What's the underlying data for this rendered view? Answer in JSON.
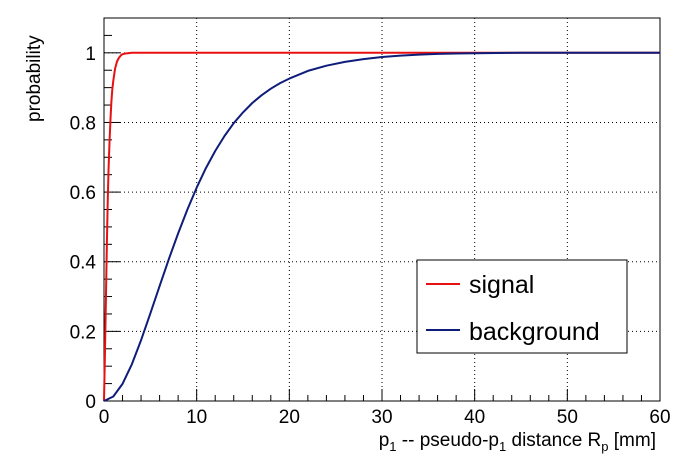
{
  "chart_data": {
    "type": "line",
    "xlabel": {
      "pre": "p",
      "sub1": "1",
      "mid": " -- pseudo-p",
      "sub2": "1",
      "post": " distance R",
      "sub3": "p",
      "unit": " [mm]"
    },
    "ylabel": "probability",
    "xlim": [
      0,
      60
    ],
    "ylim": [
      0,
      1.1
    ],
    "xticks": [
      0,
      10,
      20,
      30,
      40,
      50,
      60
    ],
    "yticks": [
      0,
      0.2,
      0.4,
      0.6,
      0.8,
      1
    ],
    "ytick_labels": [
      "0",
      "0.2",
      "0.4",
      "0.6",
      "0.8",
      "1"
    ],
    "grid": true,
    "legend_position": "bottom-right",
    "series": [
      {
        "name": "signal",
        "color": "#e81010",
        "x": [
          0,
          0.1,
          0.2,
          0.3,
          0.4,
          0.5,
          0.6,
          0.7,
          0.8,
          0.9,
          1.0,
          1.2,
          1.4,
          1.6,
          1.8,
          2.0,
          2.3,
          2.6,
          3.0,
          4,
          60
        ],
        "y": [
          0,
          0.13,
          0.29,
          0.44,
          0.57,
          0.67,
          0.75,
          0.81,
          0.86,
          0.895,
          0.92,
          0.955,
          0.975,
          0.985,
          0.992,
          0.996,
          0.998,
          0.999,
          1.0,
          1.0,
          1.0
        ]
      },
      {
        "name": "background",
        "color": "#0f1d7a",
        "x": [
          0,
          1,
          2,
          3,
          4,
          5,
          6,
          7,
          8,
          9,
          10,
          11,
          12,
          13,
          14,
          15,
          16,
          17,
          18,
          19,
          20,
          22,
          24,
          26,
          28,
          30,
          32,
          34,
          36,
          38,
          40,
          45,
          50,
          55,
          60
        ],
        "y": [
          0,
          0.013,
          0.049,
          0.105,
          0.175,
          0.251,
          0.33,
          0.408,
          0.481,
          0.55,
          0.613,
          0.669,
          0.718,
          0.761,
          0.798,
          0.829,
          0.856,
          0.878,
          0.897,
          0.913,
          0.926,
          0.948,
          0.963,
          0.974,
          0.982,
          0.988,
          0.992,
          0.995,
          0.997,
          0.998,
          0.999,
          1.0,
          1.0,
          1.0,
          1.0
        ]
      }
    ]
  }
}
